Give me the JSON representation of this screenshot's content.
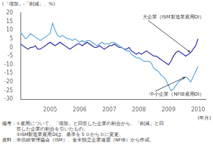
{
  "chart_data": {
    "type": "line",
    "ylabel": "(「増加」-「削減」、%)",
    "xlabel": "(年月)",
    "notes": [
      "備考：①雇用について、「増加」と回答した企業の割合から、「削減」と回",
      "　　　答した企業の割合を引いたもの。",
      "　　　②ISM製造業雇用DIは、基準を５０から０に変更。",
      "資料：米供給管理協会（ISM）、全米独立企業連盟（NFIB）から作成。"
    ],
    "x": [
      2004.0,
      2004.083,
      2004.167,
      2004.25,
      2004.333,
      2004.417,
      2004.5,
      2004.583,
      2004.667,
      2004.75,
      2004.833,
      2004.917,
      2005.0,
      2005.083,
      2005.167,
      2005.25,
      2005.333,
      2005.417,
      2005.5,
      2005.583,
      2005.667,
      2005.75,
      2005.833,
      2005.917,
      2006.0,
      2006.083,
      2006.167,
      2006.25,
      2006.333,
      2006.417,
      2006.5,
      2006.583,
      2006.667,
      2006.75,
      2006.833,
      2006.917,
      2007.0,
      2007.083,
      2007.167,
      2007.25,
      2007.333,
      2007.417,
      2007.5,
      2007.583,
      2007.667,
      2007.75,
      2007.833,
      2007.917,
      2008.0,
      2008.083,
      2008.167,
      2008.25,
      2008.333,
      2008.417,
      2008.5,
      2008.583,
      2008.667,
      2008.75,
      2008.833,
      2008.917,
      2009.0,
      2009.083,
      2009.167,
      2009.25,
      2009.333,
      2009.417,
      2009.5,
      2009.583,
      2009.667,
      2009.75,
      2009.833,
      2009.917,
      2010.0
    ],
    "series": [
      {
        "name": "中小企業（NFIB雇用DI）",
        "color": "#66aadd",
        "values": [
          9,
          7,
          5,
          6,
          8,
          7,
          6,
          5,
          4,
          5,
          6,
          7,
          8,
          14,
          10,
          7,
          6,
          7,
          6,
          5,
          5,
          4,
          5,
          4,
          3,
          4,
          3,
          4,
          4,
          3,
          2,
          1,
          2,
          3,
          2,
          2,
          2,
          3,
          3,
          2,
          1,
          0,
          -1,
          -2,
          -2,
          -4,
          -5,
          -6,
          -6,
          -7,
          -8,
          -8,
          -8,
          -9,
          -12,
          -13,
          -14,
          -16,
          -17,
          -19,
          -22,
          -25,
          -24,
          -22,
          -20,
          -19,
          -18,
          -17,
          -18,
          -20,
          -17,
          -14,
          -11
        ]
      },
      {
        "name": "大企業（ISM製造業雇用DI）",
        "color": "#3333aa",
        "values": [
          2,
          1,
          0,
          -1,
          0,
          0,
          1,
          -1,
          -1,
          0,
          1,
          2,
          3,
          2,
          1,
          2,
          3,
          2,
          1,
          0,
          -1,
          0,
          1,
          2,
          2,
          1,
          2,
          3,
          2,
          1,
          0,
          0,
          1,
          0,
          -1,
          0,
          1,
          1,
          2,
          1,
          0,
          0,
          -1,
          -1,
          0,
          -2,
          -3,
          -4,
          -3,
          -4,
          -3,
          -2,
          -3,
          -4,
          -5,
          -5,
          -6,
          -7,
          -8,
          -9,
          -10,
          -8,
          -5,
          -3,
          -2,
          -3,
          -4,
          -5,
          -4,
          -3,
          -1,
          1,
          5
        ]
      }
    ],
    "xlim": [
      2004.0,
      2010.25
    ],
    "xticks": [
      2005,
      2006,
      2007,
      2008,
      2009,
      2010
    ],
    "ylim": [
      -30,
      20
    ],
    "yticks": [
      -30,
      -25,
      -20,
      -15,
      -10,
      -5,
      0,
      5,
      10,
      15,
      20
    ],
    "grid": false
  }
}
